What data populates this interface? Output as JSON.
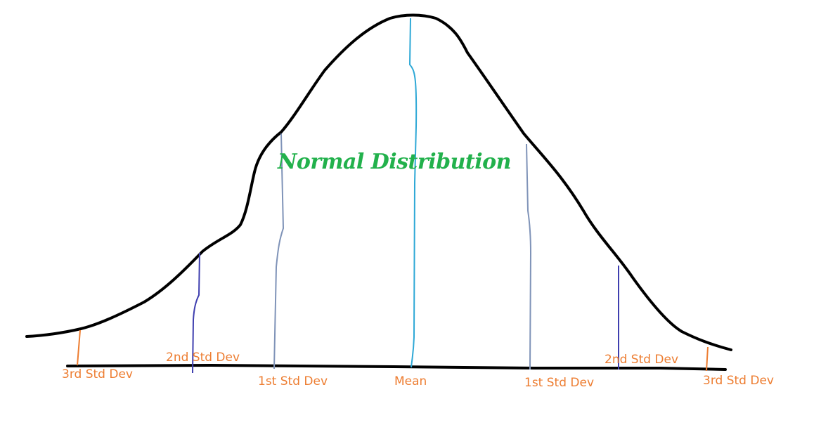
{
  "title": "Normal Distribution",
  "colors": {
    "curve": "#000000",
    "baseline": "#000000",
    "mean_line": "#2EA8D6",
    "std1_line": "#7F93B8",
    "std2_line": "#3F3FAF",
    "std3_line": "#ED7D31",
    "label_text": "#ED7D31",
    "title_text": "#22B14C"
  },
  "labels": {
    "std3_left": "3rd Std Dev",
    "std2_left": "2nd Std Dev",
    "std1_left": "1st Std Dev",
    "mean": "Mean",
    "std1_right": "1st Std Dev",
    "std2_right": "2nd Std Dev",
    "std3_right": "3rd Std Dev"
  }
}
